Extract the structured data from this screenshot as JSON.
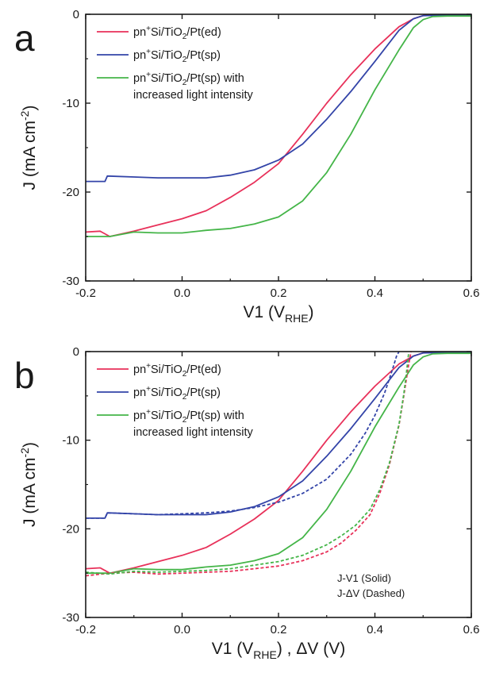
{
  "chart_data": [
    {
      "type": "line",
      "panel_label": "a",
      "xlim": [
        -0.2,
        0.6
      ],
      "ylim": [
        -30,
        0
      ],
      "x_ticks": [
        -0.2,
        0.0,
        0.2,
        0.4,
        0.6
      ],
      "y_ticks": [
        0,
        -10,
        -20,
        -30
      ],
      "x_tick_labels": [
        "-0.2",
        "0.0",
        "0.2",
        "0.4",
        "0.6"
      ],
      "y_tick_labels": [
        "0",
        "-10",
        "-20",
        "-30"
      ],
      "xlabel": {
        "main": "V1 (V",
        "sub": "RHE",
        "tail": ")"
      },
      "ylabel": {
        "main": "J (mA cm",
        "sup": "-2",
        "tail": ")"
      },
      "legend": [
        {
          "line1": [
            "pn",
            "+",
            "Si/TiO",
            "2",
            "/Pt(ed)"
          ],
          "line2": "",
          "color": "#e8315a"
        },
        {
          "line1": [
            "pn",
            "+",
            "Si/TiO",
            "2",
            "/Pt(sp)"
          ],
          "line2": "",
          "color": "#3344a8"
        },
        {
          "line1": [
            "pn",
            "+",
            "Si/TiO",
            "2",
            "/Pt(sp) with"
          ],
          "line2": "increased light intensity",
          "color": "#44b548"
        }
      ],
      "series": [
        {
          "color": "#e8315a",
          "style": "solid",
          "x": [
            -0.2,
            -0.17,
            -0.15,
            -0.1,
            -0.05,
            0.0,
            0.05,
            0.1,
            0.15,
            0.2,
            0.25,
            0.3,
            0.35,
            0.4,
            0.45,
            0.48,
            0.5,
            0.52,
            0.55,
            0.6
          ],
          "y": [
            -24.5,
            -24.4,
            -25.0,
            -24.4,
            -23.7,
            -23.0,
            -22.1,
            -20.6,
            -18.9,
            -16.8,
            -13.5,
            -10.0,
            -6.8,
            -3.9,
            -1.4,
            -0.5,
            -0.15,
            0.0,
            0.0,
            0.0
          ]
        },
        {
          "color": "#3344a8",
          "style": "solid",
          "x": [
            -0.2,
            -0.16,
            -0.155,
            -0.1,
            -0.05,
            0.0,
            0.05,
            0.1,
            0.15,
            0.2,
            0.25,
            0.3,
            0.35,
            0.4,
            0.45,
            0.48,
            0.5,
            0.55,
            0.6
          ],
          "y": [
            -18.8,
            -18.8,
            -18.2,
            -18.3,
            -18.4,
            -18.4,
            -18.4,
            -18.1,
            -17.5,
            -16.4,
            -14.6,
            -11.8,
            -8.7,
            -5.3,
            -1.8,
            -0.5,
            -0.15,
            -0.1,
            -0.1
          ]
        },
        {
          "color": "#44b548",
          "style": "solid",
          "x": [
            -0.2,
            -0.15,
            -0.1,
            -0.05,
            0.0,
            0.05,
            0.1,
            0.15,
            0.2,
            0.25,
            0.3,
            0.35,
            0.4,
            0.45,
            0.48,
            0.5,
            0.52,
            0.55,
            0.6
          ],
          "y": [
            -25.0,
            -25.0,
            -24.5,
            -24.6,
            -24.6,
            -24.3,
            -24.1,
            -23.6,
            -22.8,
            -21.0,
            -17.8,
            -13.5,
            -8.5,
            -4.0,
            -1.5,
            -0.6,
            -0.25,
            -0.2,
            -0.2
          ]
        }
      ]
    },
    {
      "type": "line",
      "panel_label": "b",
      "xlim": [
        -0.2,
        0.6
      ],
      "ylim": [
        -30,
        0
      ],
      "x_ticks": [
        -0.2,
        0.0,
        0.2,
        0.4,
        0.6
      ],
      "y_ticks": [
        0,
        -10,
        -20,
        -30
      ],
      "x_tick_labels": [
        "-0.2",
        "0.0",
        "0.2",
        "0.4",
        "0.6"
      ],
      "y_tick_labels": [
        "0",
        "-10",
        "-20",
        "-30"
      ],
      "xlabel": {
        "main": "V1 (V",
        "sub": "RHE",
        "tail": ") , ΔV (V)"
      },
      "ylabel": {
        "main": "J (mA cm",
        "sup": "-2",
        "tail": ")"
      },
      "legend": [
        {
          "line1": [
            "pn",
            "+",
            "Si/TiO",
            "2",
            "/Pt(ed)"
          ],
          "line2": "",
          "color": "#e8315a"
        },
        {
          "line1": [
            "pn",
            "+",
            "Si/TiO",
            "2",
            "/Pt(sp)"
          ],
          "line2": "",
          "color": "#3344a8"
        },
        {
          "line1": [
            "pn",
            "+",
            "Si/TiO",
            "2",
            "/Pt(sp) with"
          ],
          "line2": "increased light intensity",
          "color": "#44b548"
        }
      ],
      "annotations": [
        "J-V1 (Solid)",
        "J-ΔV (Dashed)"
      ],
      "series": [
        {
          "color": "#e8315a",
          "style": "solid",
          "x": [
            -0.2,
            -0.17,
            -0.15,
            -0.1,
            -0.05,
            0.0,
            0.05,
            0.1,
            0.15,
            0.2,
            0.25,
            0.3,
            0.35,
            0.4,
            0.45,
            0.48,
            0.5,
            0.52,
            0.55,
            0.6
          ],
          "y": [
            -24.5,
            -24.4,
            -25.0,
            -24.4,
            -23.7,
            -23.0,
            -22.1,
            -20.6,
            -18.9,
            -16.8,
            -13.5,
            -10.0,
            -6.8,
            -3.9,
            -1.4,
            -0.5,
            -0.15,
            0.0,
            0.0,
            0.0
          ]
        },
        {
          "color": "#3344a8",
          "style": "solid",
          "x": [
            -0.2,
            -0.16,
            -0.155,
            -0.1,
            -0.05,
            0.0,
            0.05,
            0.1,
            0.15,
            0.2,
            0.25,
            0.3,
            0.35,
            0.4,
            0.45,
            0.48,
            0.5,
            0.55,
            0.6
          ],
          "y": [
            -18.8,
            -18.8,
            -18.2,
            -18.3,
            -18.4,
            -18.4,
            -18.4,
            -18.1,
            -17.5,
            -16.4,
            -14.6,
            -11.8,
            -8.7,
            -5.3,
            -1.8,
            -0.5,
            -0.15,
            -0.1,
            -0.1
          ]
        },
        {
          "color": "#44b548",
          "style": "solid",
          "x": [
            -0.2,
            -0.15,
            -0.1,
            -0.05,
            0.0,
            0.05,
            0.1,
            0.15,
            0.2,
            0.25,
            0.3,
            0.35,
            0.4,
            0.45,
            0.48,
            0.5,
            0.52,
            0.55,
            0.6
          ],
          "y": [
            -25.0,
            -25.0,
            -24.5,
            -24.6,
            -24.6,
            -24.3,
            -24.1,
            -23.6,
            -22.8,
            -21.0,
            -17.8,
            -13.5,
            -8.5,
            -4.0,
            -1.5,
            -0.6,
            -0.25,
            -0.2,
            -0.2
          ]
        },
        {
          "color": "#e8315a",
          "style": "dashed",
          "x": [
            -0.2,
            -0.15,
            -0.1,
            -0.05,
            0.0,
            0.05,
            0.1,
            0.15,
            0.2,
            0.25,
            0.3,
            0.33,
            0.36,
            0.39,
            0.41,
            0.43,
            0.45,
            0.46,
            0.47,
            0.475
          ],
          "y": [
            -25.3,
            -25.0,
            -24.9,
            -25.1,
            -25.0,
            -24.9,
            -24.8,
            -24.5,
            -24.2,
            -23.6,
            -22.6,
            -21.6,
            -20.2,
            -18.4,
            -16.0,
            -12.8,
            -8.3,
            -5.0,
            -1.5,
            0.0
          ]
        },
        {
          "color": "#3344a8",
          "style": "dashed",
          "x": [
            -0.2,
            -0.16,
            -0.155,
            -0.1,
            -0.05,
            0.0,
            0.05,
            0.1,
            0.15,
            0.2,
            0.25,
            0.3,
            0.35,
            0.38,
            0.4,
            0.42,
            0.43,
            0.44,
            0.445,
            0.45
          ],
          "y": [
            -18.8,
            -18.8,
            -18.2,
            -18.3,
            -18.4,
            -18.3,
            -18.2,
            -18.0,
            -17.6,
            -17.0,
            -16.0,
            -14.4,
            -11.6,
            -9.2,
            -7.2,
            -4.7,
            -3.1,
            -1.4,
            -0.5,
            0.0
          ]
        },
        {
          "color": "#44b548",
          "style": "dashed",
          "x": [
            -0.2,
            -0.15,
            -0.1,
            -0.05,
            0.0,
            0.05,
            0.1,
            0.15,
            0.2,
            0.25,
            0.3,
            0.33,
            0.36,
            0.39,
            0.41,
            0.43,
            0.45,
            0.46,
            0.465,
            0.47
          ],
          "y": [
            -24.9,
            -25.1,
            -24.8,
            -24.9,
            -24.8,
            -24.7,
            -24.5,
            -24.1,
            -23.7,
            -23.0,
            -21.8,
            -20.8,
            -19.6,
            -17.8,
            -15.6,
            -12.6,
            -8.2,
            -4.8,
            -2.6,
            -0.2
          ]
        }
      ]
    }
  ]
}
